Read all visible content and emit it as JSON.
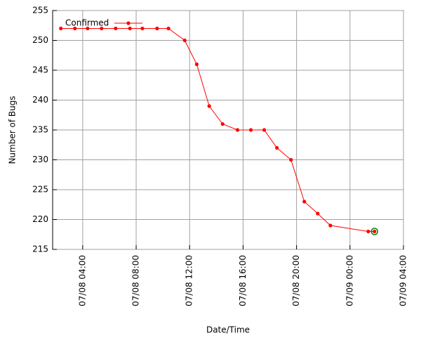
{
  "chart_data": {
    "type": "line",
    "xlabel": "Date/Time",
    "ylabel": "Number of Bugs",
    "x": [
      "07/08 02:22",
      "07/08 03:25",
      "07/08 04:22",
      "07/08 05:25",
      "07/08 06:28",
      "07/08 07:32",
      "07/08 08:28",
      "07/08 09:34",
      "07/08 10:25",
      "07/08 11:38",
      "07/08 12:32",
      "07/08 13:28",
      "07/08 14:28",
      "07/08 15:35",
      "07/08 16:35",
      "07/08 17:35",
      "07/08 18:32",
      "07/08 19:35",
      "07/08 20:35",
      "07/08 21:35",
      "07/08 22:32",
      "07/09 01:22",
      "07/09 01:50"
    ],
    "series": [
      {
        "name": "Confirmed",
        "color": "#ff0000",
        "values": [
          252,
          252,
          252,
          252,
          252,
          252,
          252,
          252,
          252,
          250,
          246,
          239,
          236,
          235,
          235,
          235,
          232,
          230,
          223,
          221,
          219,
          218,
          218
        ]
      }
    ],
    "last_point_highlight": "#008000",
    "xlim": [
      "07/08 01:45",
      "07/09 04:00"
    ],
    "xticks": [
      "07/08 04:00",
      "07/08 08:00",
      "07/08 12:00",
      "07/08 16:00",
      "07/08 20:00",
      "07/09 00:00",
      "07/09 04:00"
    ],
    "ylim": [
      215,
      255
    ],
    "yticks": [
      215,
      220,
      225,
      230,
      235,
      240,
      245,
      250,
      255
    ],
    "grid": true,
    "legend": "top-left"
  }
}
